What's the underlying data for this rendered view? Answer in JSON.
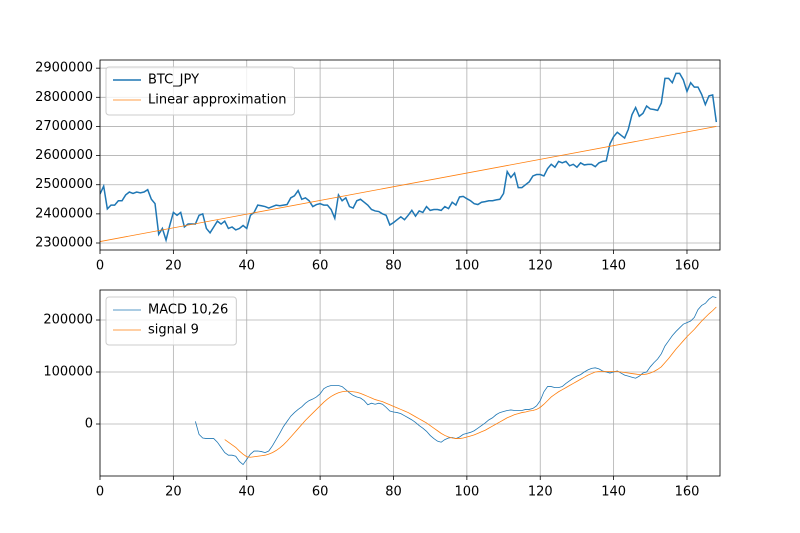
{
  "chart_data": [
    {
      "type": "line",
      "x": [
        0,
        1,
        2,
        3,
        4,
        5,
        6,
        7,
        8,
        9,
        10,
        11,
        12,
        13,
        14,
        15,
        16,
        17,
        18,
        19,
        20,
        21,
        22,
        23,
        24,
        25,
        26,
        27,
        28,
        29,
        30,
        31,
        32,
        33,
        34,
        35,
        36,
        37,
        38,
        39,
        40,
        41,
        42,
        43,
        44,
        45,
        46,
        47,
        48,
        49,
        50,
        51,
        52,
        53,
        54,
        55,
        56,
        57,
        58,
        59,
        60,
        61,
        62,
        63,
        64,
        65,
        66,
        67,
        68,
        69,
        70,
        71,
        72,
        73,
        74,
        75,
        76,
        77,
        78,
        79,
        80,
        81,
        82,
        83,
        84,
        85,
        86,
        87,
        88,
        89,
        90,
        91,
        92,
        93,
        94,
        95,
        96,
        97,
        98,
        99,
        100,
        101,
        102,
        103,
        104,
        105,
        106,
        107,
        108,
        109,
        110,
        111,
        112,
        113,
        114,
        115,
        116,
        117,
        118,
        119,
        120,
        121,
        122,
        123,
        124,
        125,
        126,
        127,
        128,
        129,
        130,
        131,
        132,
        133,
        134,
        135,
        136,
        137,
        138,
        139,
        140,
        141,
        142,
        143,
        144,
        145,
        146,
        147,
        148,
        149,
        150,
        151,
        152,
        153,
        154,
        155,
        156,
        157,
        158,
        159,
        160,
        161,
        162,
        163,
        164,
        165,
        166,
        167,
        168
      ],
      "series": [
        {
          "name": "BTC_JPY",
          "color": "#1f77b4",
          "values": [
            2468000,
            2495000,
            2417000,
            2430000,
            2430000,
            2445000,
            2445000,
            2465000,
            2475000,
            2470000,
            2475000,
            2472000,
            2475000,
            2483000,
            2450000,
            2435000,
            2330000,
            2350000,
            2310000,
            2360000,
            2405000,
            2395000,
            2405000,
            2355000,
            2365000,
            2365000,
            2365000,
            2395000,
            2400000,
            2350000,
            2335000,
            2355000,
            2375000,
            2365000,
            2375000,
            2350000,
            2355000,
            2345000,
            2350000,
            2360000,
            2350000,
            2395000,
            2405000,
            2430000,
            2428000,
            2425000,
            2420000,
            2425000,
            2430000,
            2428000,
            2430000,
            2432000,
            2455000,
            2462000,
            2480000,
            2450000,
            2455000,
            2445000,
            2425000,
            2432000,
            2435000,
            2430000,
            2430000,
            2415000,
            2385000,
            2465000,
            2445000,
            2455000,
            2425000,
            2420000,
            2445000,
            2450000,
            2440000,
            2430000,
            2415000,
            2410000,
            2408000,
            2400000,
            2395000,
            2362000,
            2370000,
            2380000,
            2390000,
            2380000,
            2395000,
            2412000,
            2392000,
            2410000,
            2405000,
            2425000,
            2412000,
            2415000,
            2415000,
            2412000,
            2425000,
            2418000,
            2440000,
            2430000,
            2458000,
            2460000,
            2452000,
            2445000,
            2435000,
            2432000,
            2440000,
            2442000,
            2445000,
            2445000,
            2448000,
            2450000,
            2470000,
            2545000,
            2525000,
            2540000,
            2490000,
            2490000,
            2500000,
            2510000,
            2530000,
            2535000,
            2535000,
            2530000,
            2555000,
            2570000,
            2560000,
            2580000,
            2575000,
            2580000,
            2565000,
            2570000,
            2560000,
            2575000,
            2568000,
            2570000,
            2570000,
            2562000,
            2575000,
            2580000,
            2582000,
            2640000,
            2665000,
            2680000,
            2670000,
            2660000,
            2690000,
            2740000,
            2765000,
            2735000,
            2745000,
            2770000,
            2760000,
            2758000,
            2755000,
            2780000,
            2865000,
            2865000,
            2850000,
            2882000,
            2882000,
            2860000,
            2820000,
            2850000,
            2835000,
            2835000,
            2810000,
            2775000,
            2805000,
            2808000,
            2715000
          ]
        },
        {
          "name": "Linear approximation",
          "color": "#ff7f0e",
          "x": [
            0,
            168
          ],
          "values": [
            2305000,
            2700000
          ]
        }
      ],
      "xlim": [
        0,
        169
      ],
      "xticks": [
        0,
        20,
        40,
        60,
        80,
        100,
        120,
        140,
        160
      ],
      "ylim": [
        2276000,
        2928000
      ],
      "yticks": [
        2300000,
        2400000,
        2500000,
        2600000,
        2700000,
        2800000,
        2900000
      ],
      "grid": true,
      "legend": "upper left"
    },
    {
      "type": "line",
      "x": [
        0,
        1,
        2,
        3,
        4,
        5,
        6,
        7,
        8,
        9,
        10,
        11,
        12,
        13,
        14,
        15,
        16,
        17,
        18,
        19,
        20,
        21,
        22,
        23,
        24,
        25,
        26,
        27,
        28,
        29,
        30,
        31,
        32,
        33,
        34,
        35,
        36,
        37,
        38,
        39,
        40,
        41,
        42,
        43,
        44,
        45,
        46,
        47,
        48,
        49,
        50,
        51,
        52,
        53,
        54,
        55,
        56,
        57,
        58,
        59,
        60,
        61,
        62,
        63,
        64,
        65,
        66,
        67,
        68,
        69,
        70,
        71,
        72,
        73,
        74,
        75,
        76,
        77,
        78,
        79,
        80,
        81,
        82,
        83,
        84,
        85,
        86,
        87,
        88,
        89,
        90,
        91,
        92,
        93,
        94,
        95,
        96,
        97,
        98,
        99,
        100,
        101,
        102,
        103,
        104,
        105,
        106,
        107,
        108,
        109,
        110,
        111,
        112,
        113,
        114,
        115,
        116,
        117,
        118,
        119,
        120,
        121,
        122,
        123,
        124,
        125,
        126,
        127,
        128,
        129,
        130,
        131,
        132,
        133,
        134,
        135,
        136,
        137,
        138,
        139,
        140,
        141,
        142,
        143,
        144,
        145,
        146,
        147,
        148,
        149,
        150,
        151,
        152,
        153,
        154,
        155,
        156,
        157,
        158,
        159,
        160,
        161,
        162,
        163,
        164,
        165,
        166,
        167,
        168
      ],
      "series": [
        {
          "name": "MACD 10,26",
          "color": "#1f77b4",
          "values": [
            null,
            null,
            null,
            null,
            null,
            null,
            null,
            null,
            null,
            null,
            null,
            null,
            null,
            null,
            null,
            null,
            null,
            null,
            null,
            null,
            null,
            null,
            null,
            null,
            null,
            null,
            5000,
            -20000,
            -27000,
            -28000,
            -28000,
            -28000,
            -35000,
            -45000,
            -55000,
            -60000,
            -60000,
            -62000,
            -72000,
            -78000,
            -68000,
            -58000,
            -52000,
            -52000,
            -53000,
            -55000,
            -52000,
            -42000,
            -30000,
            -18000,
            -5000,
            5000,
            15000,
            22000,
            28000,
            33000,
            40000,
            45000,
            48000,
            52000,
            58000,
            68000,
            72000,
            74000,
            74000,
            74000,
            72000,
            66000,
            60000,
            55000,
            52000,
            50000,
            45000,
            37000,
            40000,
            38000,
            40000,
            38000,
            32000,
            25000,
            23000,
            22000,
            20000,
            16000,
            12000,
            8000,
            3000,
            -3000,
            -8000,
            -14000,
            -22000,
            -28000,
            -33000,
            -35000,
            -30000,
            -27000,
            -26000,
            -28000,
            -25000,
            -20000,
            -18000,
            -16000,
            -13000,
            -8000,
            -3000,
            2000,
            8000,
            12000,
            18000,
            22000,
            24000,
            26000,
            27000,
            26000,
            26000,
            26000,
            28000,
            28000,
            30000,
            35000,
            45000,
            62000,
            72000,
            72000,
            70000,
            70000,
            72000,
            78000,
            83000,
            88000,
            92000,
            95000,
            100000,
            104000,
            107000,
            108000,
            106000,
            102000,
            100000,
            98000,
            100000,
            102000,
            98000,
            94000,
            92000,
            90000,
            88000,
            92000,
            98000,
            100000,
            110000,
            118000,
            125000,
            135000,
            150000,
            160000,
            170000,
            178000,
            185000,
            192000,
            195000,
            198000,
            205000,
            220000,
            228000,
            232000,
            240000,
            245000,
            243000
          ]
        },
        {
          "name": "signal 9",
          "color": "#ff7f0e",
          "values": [
            null,
            null,
            null,
            null,
            null,
            null,
            null,
            null,
            null,
            null,
            null,
            null,
            null,
            null,
            null,
            null,
            null,
            null,
            null,
            null,
            null,
            null,
            null,
            null,
            null,
            null,
            null,
            null,
            null,
            null,
            null,
            null,
            null,
            null,
            -30000,
            -35000,
            -40000,
            -45000,
            -52000,
            -58000,
            -63000,
            -64000,
            -63000,
            -62000,
            -61000,
            -60000,
            -58000,
            -55000,
            -51000,
            -46000,
            -40000,
            -33000,
            -25000,
            -17000,
            -9000,
            -1000,
            7000,
            14000,
            21000,
            28000,
            35000,
            42000,
            48000,
            53000,
            57000,
            60000,
            62000,
            63000,
            63000,
            62000,
            61000,
            59000,
            56000,
            53000,
            50000,
            47000,
            45000,
            43000,
            40000,
            37000,
            34000,
            31000,
            28000,
            25000,
            22000,
            18000,
            14000,
            10000,
            6000,
            2000,
            -3000,
            -8000,
            -13000,
            -18000,
            -22000,
            -25000,
            -27000,
            -28000,
            -28000,
            -27000,
            -25000,
            -23000,
            -21000,
            -18000,
            -15000,
            -12000,
            -8000,
            -4000,
            0,
            4000,
            8000,
            12000,
            15000,
            18000,
            20000,
            22000,
            23000,
            25000,
            26000,
            28000,
            32000,
            38000,
            45000,
            52000,
            57000,
            62000,
            66000,
            70000,
            74000,
            78000,
            82000,
            86000,
            90000,
            94000,
            97000,
            100000,
            101000,
            101000,
            101000,
            101000,
            101000,
            101000,
            100000,
            99000,
            98000,
            97000,
            96000,
            95000,
            95000,
            96000,
            98000,
            101000,
            105000,
            110000,
            118000,
            126000,
            135000,
            144000,
            152000,
            160000,
            168000,
            175000,
            182000,
            190000,
            198000,
            205000,
            212000,
            218000,
            225000
          ]
        }
      ],
      "xlim": [
        0,
        169
      ],
      "xticks": [
        0,
        20,
        40,
        60,
        80,
        100,
        120,
        140,
        160
      ],
      "ylim": [
        -100000,
        257700
      ],
      "yticks": [
        0,
        100000,
        200000
      ],
      "grid": true,
      "legend": "upper left"
    }
  ]
}
